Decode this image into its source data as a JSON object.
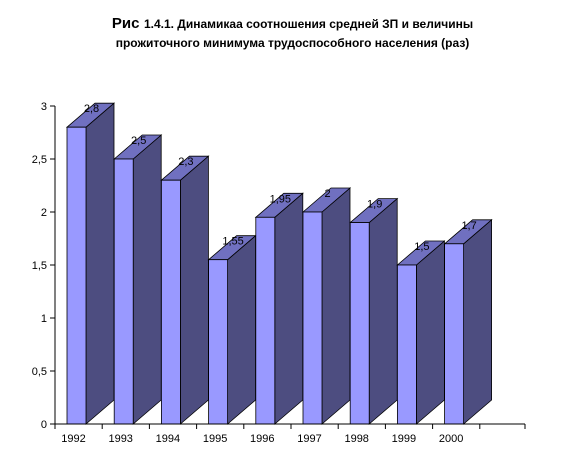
{
  "chart_data": {
    "type": "bar",
    "title_prefix": "Рис",
    "title_line1": "1.4.1.  Динамикаа соотношения средней ЗП и величины",
    "title_line2": "прожиточного минимума трудоспособного населения (раз)",
    "categories": [
      "1992",
      "1993",
      "1994",
      "1995",
      "1996",
      "1997",
      "1998",
      "1999",
      "2000"
    ],
    "values": [
      2.8,
      2.5,
      2.3,
      1.55,
      1.95,
      2,
      1.9,
      1.5,
      1.7
    ],
    "value_labels": [
      "2,8",
      "2,5",
      "2,3",
      "1,55",
      "1,95",
      "2",
      "1,9",
      "1,5",
      "1,7"
    ],
    "yticks": [
      "0",
      "0,5",
      "1",
      "1,5",
      "2",
      "2,5",
      "3"
    ],
    "ylim": [
      0,
      3
    ],
    "xlabel": "",
    "ylabel": "",
    "grid": false,
    "legend": "none",
    "colors": {
      "front": "#9999ff",
      "side": "#4d4d80",
      "top": "#7070c0",
      "edge": "#000000"
    }
  }
}
